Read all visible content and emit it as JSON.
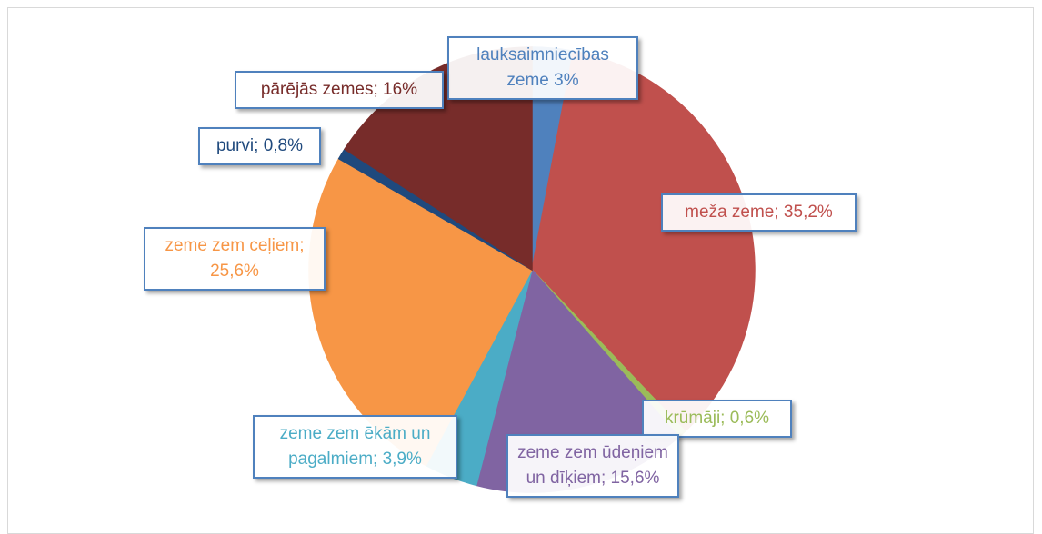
{
  "chart_data": {
    "type": "pie",
    "values": [
      3,
      35.2,
      0.6,
      15.6,
      3.9,
      25.6,
      0.8,
      16
    ],
    "value_labels": [
      "lauksaimniecības zeme 3%",
      "meža zeme; 35,2%",
      "krūmāji; 0,6%",
      "zeme zem ūdeņiem un dīķiem; 15,6%",
      "zeme zem ēkām un pagalmiem; 3,9%",
      "zeme zem ceļiem; 25,6%",
      "purvi; 0,8%",
      "pārējās zemes; 16%"
    ],
    "colors": [
      "#4f81bd",
      "#c0504d",
      "#9bbb59",
      "#8064a2",
      "#4bacc6",
      "#f79646",
      "#1f497d",
      "#772c2a"
    ]
  }
}
